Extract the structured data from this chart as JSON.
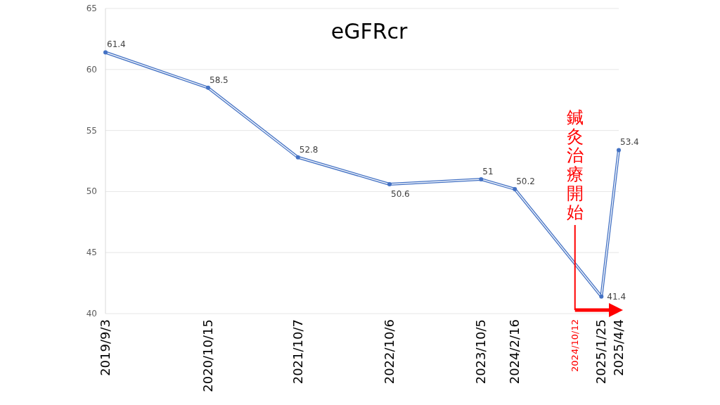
{
  "chart_data": {
    "type": "line",
    "title": "eGFRcr",
    "x": [
      "2019-09-03",
      "2020-10-15",
      "2021-10-07",
      "2022-10-06",
      "2023-10-05",
      "2024-02-16",
      "2025-01-25",
      "2025-04-04"
    ],
    "values": [
      61.4,
      58.5,
      52.8,
      50.6,
      51,
      50.2,
      41.4,
      53.4
    ],
    "color": "#4472c4",
    "marker": "circle",
    "data_labels": true,
    "grid": "y",
    "xlim": [
      "2019-09-03",
      "2025-04-04"
    ],
    "xticks": [
      {
        "value": "2019-09-03",
        "label": "2019/9/3"
      },
      {
        "value": "2020-10-15",
        "label": "2020/10/15"
      },
      {
        "value": "2021-10-07",
        "label": "2021/10/7"
      },
      {
        "value": "2022-10-06",
        "label": "2022/10/6"
      },
      {
        "value": "2023-10-05",
        "label": "2023/10/5"
      },
      {
        "value": "2024-02-16",
        "label": "2024/2/16"
      },
      {
        "value": "2025-01-25",
        "label": "2025/1/25"
      },
      {
        "value": "2025-04-04",
        "label": "2025/4/4"
      }
    ],
    "ylim": [
      40,
      65
    ],
    "yticks": [
      40,
      45,
      50,
      55,
      60,
      65
    ],
    "ref_lines": [
      {
        "axis": "x",
        "value": "2024-10-12",
        "label": "鍼灸治療開始",
        "color": "#ff0000"
      }
    ],
    "annotations": [
      "2024/10/12"
    ]
  }
}
